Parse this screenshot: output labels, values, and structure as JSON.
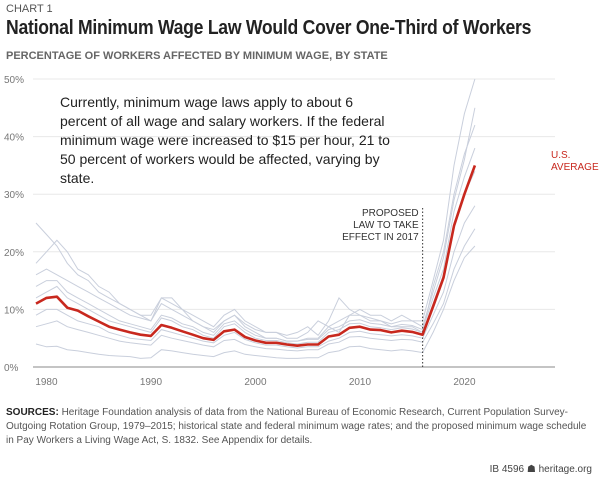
{
  "header": {
    "chart_number": "CHART 1",
    "title": "National Minimum Wage Law Would Cover One-Third of Workers"
  },
  "annotation": "Currently, minimum wage laws apply to about 6 percent of all wage and salary workers. If the federal minimum wage were increased to $15 per hour, 21 to 50 percent of workers would be affected, varying by state.",
  "sources": {
    "label": "SOURCES:",
    "text": " Heritage Foundation analysis of data from the National Bureau of Economic Research, Current Population Survey-Outgoing Rotation Group, 1979–2015; historical state and federal minimum wage rates; and the proposed minimum wage schedule in Pay Workers a Living Wage Act, S. 1832. See Appendix for details."
  },
  "footer": {
    "id": "IB 4596",
    "icon": "bell-icon",
    "site": "heritage.org"
  },
  "chart_data": {
    "type": "line",
    "title": "National Minimum Wage Law Would Cover One-Third of Workers",
    "subtitle": "PERCENTAGE OF WORKERS AFFECTED BY MINIMUM WAGE, BY STATE",
    "xlim": [
      1979,
      2021
    ],
    "ylim": [
      0,
      50
    ],
    "x_ticks": [
      1980,
      1990,
      2000,
      2010,
      2020
    ],
    "y_ticks": [
      {
        "v": 0,
        "label": "0%"
      },
      {
        "v": 10,
        "label": "10%"
      },
      {
        "v": 20,
        "label": "20%"
      },
      {
        "v": 30,
        "label": "30%"
      },
      {
        "v": 40,
        "label": "40%"
      },
      {
        "v": 50,
        "label": "50%"
      }
    ],
    "grid": "horizontal",
    "colors": {
      "average": "#c8281e",
      "states": "#c9cfdc",
      "grid": "#e8e8e8"
    },
    "vertical_marker": {
      "x": 2016,
      "label_lines": [
        "PROPOSED",
        "LAW TO TAKE",
        "EFFECT IN 2017"
      ]
    },
    "average_label_lines": [
      "U.S.",
      "AVERAGE"
    ],
    "average": {
      "name": "U.S. AVERAGE",
      "values": [
        11,
        12,
        12.2,
        10.3,
        9.8,
        8.8,
        7.9,
        7.0,
        6.5,
        6.0,
        5.6,
        5.4,
        7.3,
        6.8,
        6.2,
        5.6,
        5.0,
        4.7,
        6.2,
        6.5,
        5.2,
        4.6,
        4.2,
        4.2,
        3.9,
        3.7,
        3.9,
        3.9,
        5.3,
        5.6,
        6.8,
        7.0,
        6.5,
        6.4,
        6.0,
        6.3,
        6.1,
        5.6,
        10.5,
        15.5,
        24.5,
        30,
        35
      ]
    },
    "states": [
      [
        25,
        23,
        21,
        18,
        16,
        15,
        13,
        12,
        11,
        10,
        9,
        9,
        12,
        11,
        10,
        9,
        8,
        7,
        9,
        10,
        8,
        7,
        6,
        6,
        5,
        5,
        6,
        8,
        7,
        6,
        9,
        10,
        9,
        9,
        8,
        9,
        8,
        8,
        15,
        22,
        35,
        44,
        50
      ],
      [
        4,
        3.5,
        3.6,
        3,
        2.8,
        2.5,
        2.2,
        2,
        1.9,
        1.8,
        1.5,
        1.6,
        3,
        2.8,
        2.5,
        2.2,
        2,
        1.8,
        2.5,
        2.8,
        2.2,
        2,
        1.8,
        1.6,
        1.5,
        1.5,
        1.6,
        1.6,
        2.5,
        2.8,
        3.5,
        3.6,
        3.2,
        3,
        2.8,
        3,
        2.8,
        2.5,
        6,
        10,
        15,
        19,
        21
      ],
      [
        18,
        20,
        22,
        20,
        17,
        16,
        14,
        13,
        11,
        10,
        9,
        8,
        11,
        10,
        9,
        8,
        7,
        6,
        8,
        9,
        7,
        6,
        5,
        5,
        4.5,
        4.5,
        5,
        5,
        7,
        8,
        9,
        9,
        8,
        8,
        7,
        7,
        7,
        6,
        14,
        20,
        30,
        37,
        42
      ],
      [
        9,
        10,
        10,
        9,
        8,
        7.5,
        7,
        6,
        5.5,
        5,
        4.8,
        4.6,
        6.5,
        6,
        5.5,
        5,
        4.5,
        4.2,
        5.5,
        6,
        4.8,
        4.2,
        3.8,
        3.8,
        3.5,
        3.3,
        3.5,
        3.5,
        4.5,
        5,
        6,
        6.2,
        5.8,
        5.6,
        5.4,
        5.6,
        5.4,
        5,
        9,
        13,
        20,
        25,
        28
      ],
      [
        14,
        15,
        15,
        13,
        12,
        11,
        10,
        9,
        8,
        7.5,
        7,
        6.5,
        9,
        8.5,
        7.5,
        7,
        6,
        5.5,
        7.5,
        8,
        6.5,
        5.5,
        5,
        5,
        4.5,
        4.5,
        4.8,
        4.8,
        6.5,
        7,
        8,
        8.2,
        7.6,
        7.4,
        7,
        7.4,
        7.2,
        6.5,
        12,
        17,
        27,
        33,
        38
      ],
      [
        7,
        7.5,
        8,
        7,
        6.5,
        6,
        5.5,
        5,
        4.5,
        4.2,
        4,
        3.8,
        5.5,
        5,
        4.6,
        4.2,
        3.8,
        3.5,
        4.6,
        4.8,
        3.9,
        3.5,
        3.2,
        3.1,
        2.9,
        2.8,
        3,
        3,
        4,
        4.3,
        5.2,
        5.3,
        5,
        4.8,
        4.6,
        4.8,
        4.7,
        4.3,
        7.5,
        11,
        17,
        21,
        24
      ],
      [
        12,
        13,
        14,
        12,
        11,
        10,
        9,
        8,
        7.5,
        7,
        6.5,
        6,
        8.5,
        8,
        7,
        6.5,
        5.5,
        5,
        7,
        7.5,
        6,
        5,
        4.6,
        4.6,
        4.2,
        4,
        4.3,
        4.3,
        6,
        6.5,
        7.5,
        7.6,
        7,
        6.8,
        6.5,
        6.8,
        6.6,
        6,
        11,
        16,
        25,
        30,
        34
      ],
      [
        16,
        17,
        16,
        15,
        14,
        13,
        12,
        11,
        10,
        9,
        8.5,
        8,
        12,
        12,
        10,
        8,
        7,
        6.5,
        8,
        9,
        7.5,
        6.5,
        6,
        6,
        5.5,
        6,
        7,
        5.5,
        8,
        12,
        10,
        9,
        8.5,
        8,
        7.5,
        8,
        8,
        7,
        13,
        19,
        29,
        36,
        45
      ]
    ]
  }
}
